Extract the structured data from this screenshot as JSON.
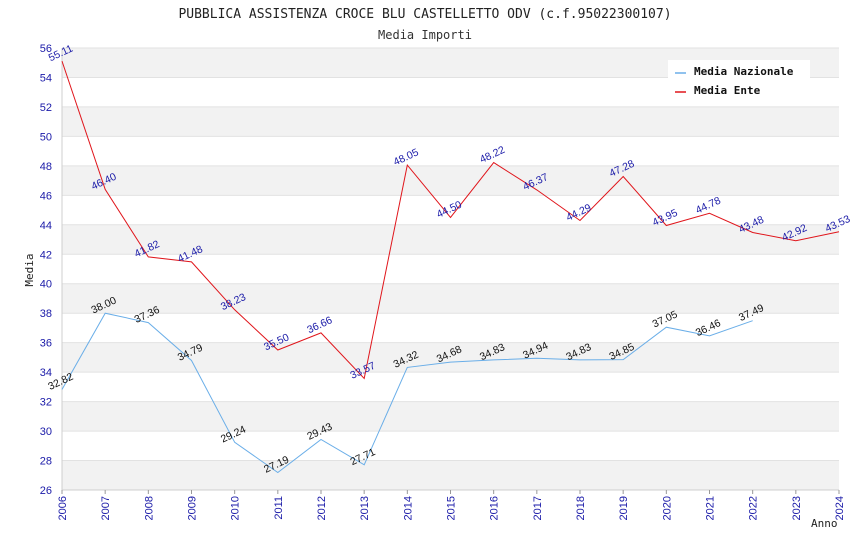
{
  "chart_data": {
    "type": "line",
    "title": "PUBBLICA ASSISTENZA CROCE BLU CASTELLETTO ODV (c.f.95022300107)",
    "subtitle": "Media Importi",
    "xlabel": "Anno",
    "ylabel": "Media",
    "ylim": [
      26,
      56
    ],
    "yticks": [
      26,
      28,
      30,
      32,
      34,
      36,
      38,
      40,
      42,
      44,
      46,
      48,
      50,
      52,
      54,
      56
    ],
    "x": [
      "2006",
      "2007",
      "2008",
      "2009",
      "2010",
      "2011",
      "2012",
      "2013",
      "2014",
      "2015",
      "2016",
      "2017",
      "2018",
      "2019",
      "2020",
      "2021",
      "2022",
      "2023",
      "2024"
    ],
    "grid": true,
    "legend_position": "top-right",
    "series": [
      {
        "name": "Media Nazionale",
        "color": "#6aaee8",
        "label_color": "#111111",
        "values": [
          32.82,
          38.0,
          37.36,
          34.79,
          29.24,
          27.19,
          29.43,
          27.71,
          34.32,
          34.68,
          34.83,
          34.94,
          34.83,
          34.85,
          37.05,
          36.46,
          37.49,
          null,
          null
        ],
        "labels": [
          "32.82",
          "38.00",
          "37.36",
          "34.79",
          "29.24",
          "27.19",
          "29.43",
          "27.71",
          "34.32",
          "34.68",
          "34.83",
          "34.94",
          "34.83",
          "34.85",
          "37.05",
          "36.46",
          "37.49",
          null,
          null
        ]
      },
      {
        "name": "Media Ente",
        "color": "#e0151b",
        "label_color": "#1a1aa8",
        "values": [
          55.11,
          46.4,
          41.82,
          41.48,
          38.23,
          35.5,
          36.66,
          33.57,
          48.05,
          44.5,
          48.22,
          46.37,
          44.29,
          47.28,
          43.95,
          44.78,
          43.48,
          42.92,
          43.53
        ],
        "labels": [
          "55.11",
          "46.40",
          "41.82",
          "41.48",
          "38.23",
          "35.50",
          "36.66",
          "33.57",
          "48.05",
          "44.50",
          "48.22",
          "46.37",
          "44.29",
          "47.28",
          "43.95",
          "44.78",
          "43.48",
          "42.92",
          "43.53"
        ]
      }
    ]
  }
}
